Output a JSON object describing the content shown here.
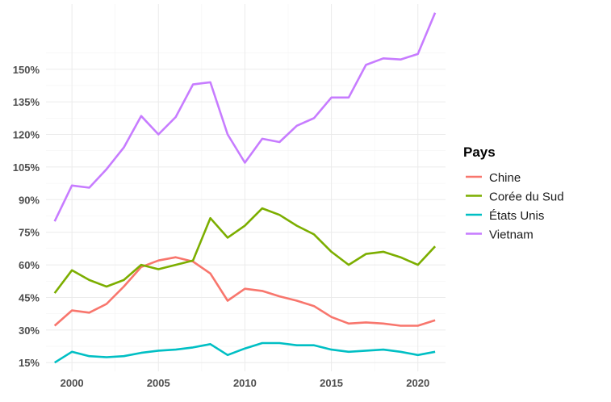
{
  "chart_data": {
    "type": "line",
    "title": "",
    "xlabel": "",
    "ylabel": "",
    "x": [
      1999,
      2000,
      2001,
      2002,
      2003,
      2004,
      2005,
      2006,
      2007,
      2008,
      2009,
      2010,
      2011,
      2012,
      2013,
      2014,
      2015,
      2016,
      2017,
      2018,
      2019,
      2020,
      2021
    ],
    "x_ticks": [
      2000,
      2005,
      2010,
      2015,
      2020
    ],
    "y_ticks": [
      15,
      30,
      45,
      60,
      75,
      90,
      105,
      120,
      135,
      150
    ],
    "y_tick_labels": [
      "15%",
      "30%",
      "45%",
      "60%",
      "75%",
      "90%",
      "105%",
      "120%",
      "135%",
      "150%"
    ],
    "xlim": [
      1998.5,
      2021.6
    ],
    "ylim": [
      11,
      180
    ],
    "grid": true,
    "legend": {
      "title": "Pays",
      "position": "right"
    },
    "series": [
      {
        "name": "Chine",
        "color": "#F8766D",
        "values": [
          32,
          39,
          38,
          42,
          50,
          59,
          62,
          63.5,
          61.5,
          56,
          43.5,
          49,
          48,
          45.5,
          43.5,
          41,
          36,
          33,
          33.5,
          33,
          32,
          32,
          34.5
        ]
      },
      {
        "name": "Corée du Sud",
        "color": "#7CAE00",
        "values": [
          47,
          57.5,
          53,
          50,
          53,
          60,
          58,
          60,
          62,
          81.5,
          72.5,
          78,
          86,
          83,
          78,
          74,
          66,
          60,
          65,
          66,
          63.5,
          60,
          68.5
        ]
      },
      {
        "name": "États Unis",
        "color": "#00BFC4",
        "values": [
          15,
          20,
          18,
          17.5,
          18,
          19.5,
          20.5,
          21,
          22,
          23.5,
          18.5,
          21.5,
          24,
          24,
          23,
          23,
          21,
          20,
          20.5,
          21,
          20,
          18.5,
          20
        ]
      },
      {
        "name": "Vietnam",
        "color": "#C77CFF",
        "values": [
          80,
          96.5,
          95.5,
          104,
          114,
          128.5,
          120,
          128,
          143,
          144,
          120,
          107,
          118,
          116.5,
          124,
          127.5,
          137,
          137,
          152,
          155,
          154.5,
          157,
          176
        ]
      }
    ]
  }
}
